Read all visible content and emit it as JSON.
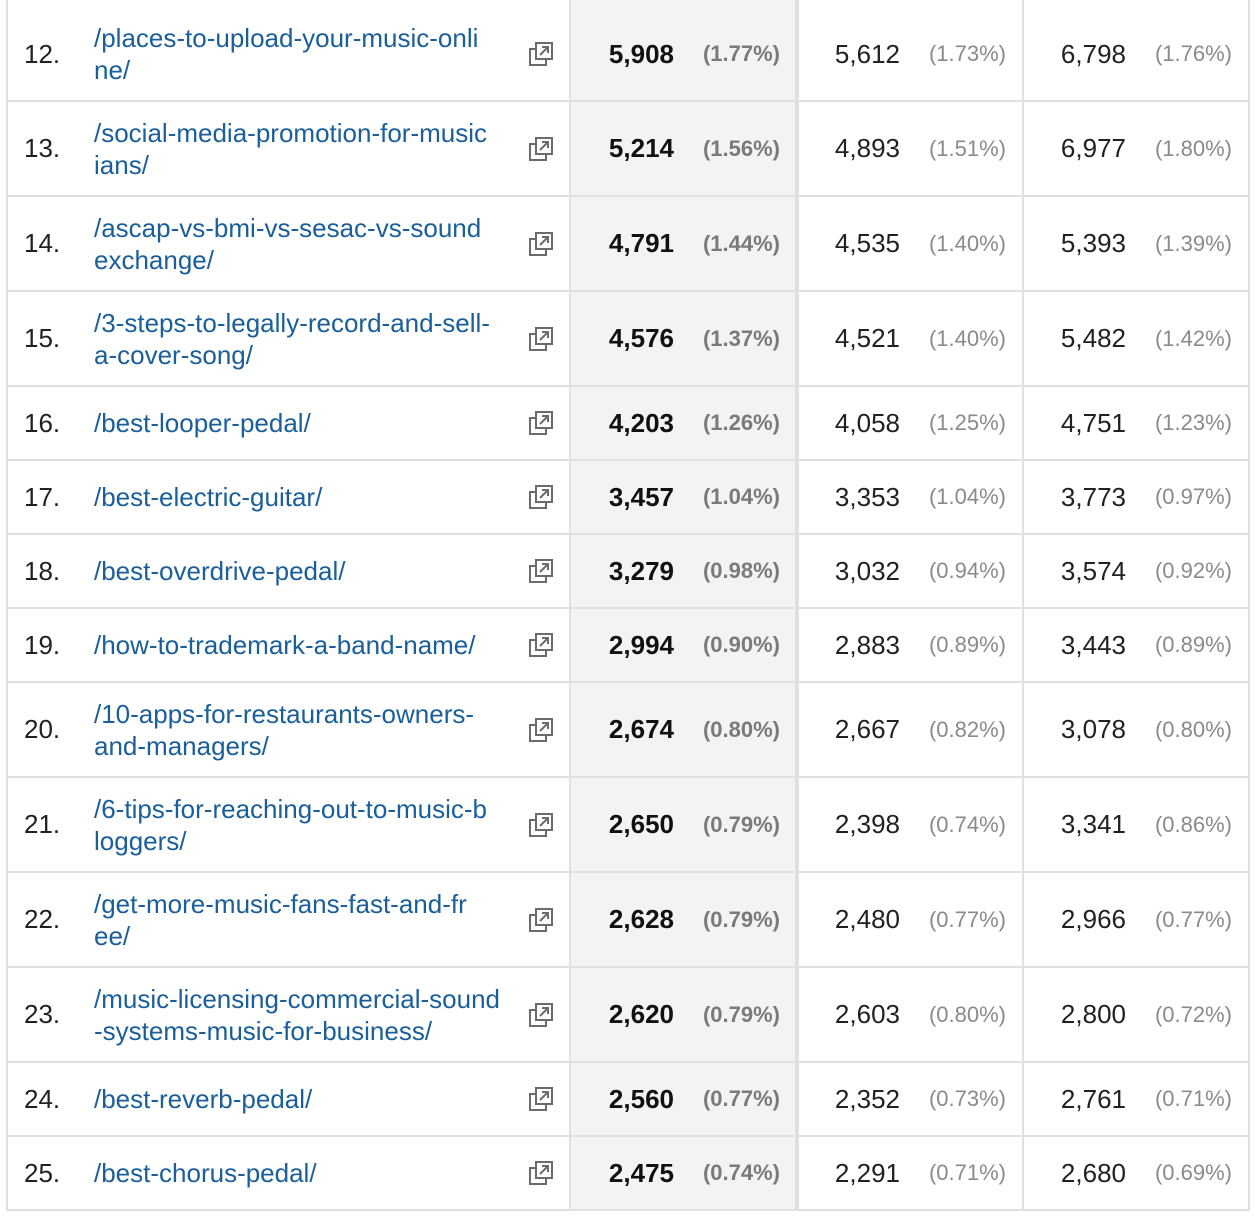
{
  "rows": [
    {
      "index": "12.",
      "page": "/places-to-upload-your-music-online/",
      "v1": "5,908",
      "p1": "(1.77%)",
      "v2": "5,612",
      "p2": "(1.73%)",
      "v3": "6,798",
      "p3": "(1.76%)"
    },
    {
      "index": "13.",
      "page": "/social-media-promotion-for-musicians/",
      "v1": "5,214",
      "p1": "(1.56%)",
      "v2": "4,893",
      "p2": "(1.51%)",
      "v3": "6,977",
      "p3": "(1.80%)"
    },
    {
      "index": "14.",
      "page": "/ascap-vs-bmi-vs-sesac-vs-soundexchange/",
      "v1": "4,791",
      "p1": "(1.44%)",
      "v2": "4,535",
      "p2": "(1.40%)",
      "v3": "5,393",
      "p3": "(1.39%)"
    },
    {
      "index": "15.",
      "page": "/3-steps-to-legally-record-and-sell-a-cover-song/",
      "v1": "4,576",
      "p1": "(1.37%)",
      "v2": "4,521",
      "p2": "(1.40%)",
      "v3": "5,482",
      "p3": "(1.42%)"
    },
    {
      "index": "16.",
      "page": "/best-looper-pedal/",
      "v1": "4,203",
      "p1": "(1.26%)",
      "v2": "4,058",
      "p2": "(1.25%)",
      "v3": "4,751",
      "p3": "(1.23%)"
    },
    {
      "index": "17.",
      "page": "/best-electric-guitar/",
      "v1": "3,457",
      "p1": "(1.04%)",
      "v2": "3,353",
      "p2": "(1.04%)",
      "v3": "3,773",
      "p3": "(0.97%)"
    },
    {
      "index": "18.",
      "page": "/best-overdrive-pedal/",
      "v1": "3,279",
      "p1": "(0.98%)",
      "v2": "3,032",
      "p2": "(0.94%)",
      "v3": "3,574",
      "p3": "(0.92%)"
    },
    {
      "index": "19.",
      "page": "/how-to-trademark-a-band-name/",
      "v1": "2,994",
      "p1": "(0.90%)",
      "v2": "2,883",
      "p2": "(0.89%)",
      "v3": "3,443",
      "p3": "(0.89%)"
    },
    {
      "index": "20.",
      "page": "/10-apps-for-restaurants-owners-and-managers/",
      "v1": "2,674",
      "p1": "(0.80%)",
      "v2": "2,667",
      "p2": "(0.82%)",
      "v3": "3,078",
      "p3": "(0.80%)"
    },
    {
      "index": "21.",
      "page": "/6-tips-for-reaching-out-to-music-bloggers/",
      "v1": "2,650",
      "p1": "(0.79%)",
      "v2": "2,398",
      "p2": "(0.74%)",
      "v3": "3,341",
      "p3": "(0.86%)"
    },
    {
      "index": "22.",
      "page": "/get-more-music-fans-fast-and-free/",
      "v1": "2,628",
      "p1": "(0.79%)",
      "v2": "2,480",
      "p2": "(0.77%)",
      "v3": "2,966",
      "p3": "(0.77%)"
    },
    {
      "index": "23.",
      "page": "/music-licensing-commercial-sound-systems-music-for-business/",
      "v1": "2,620",
      "p1": "(0.79%)",
      "v2": "2,603",
      "p2": "(0.80%)",
      "v3": "2,800",
      "p3": "(0.72%)"
    },
    {
      "index": "24.",
      "page": "/best-reverb-pedal/",
      "v1": "2,560",
      "p1": "(0.77%)",
      "v2": "2,352",
      "p2": "(0.73%)",
      "v3": "2,761",
      "p3": "(0.71%)"
    },
    {
      "index": "25.",
      "page": "/best-chorus-pedal/",
      "v1": "2,475",
      "p1": "(0.74%)",
      "v2": "2,291",
      "p2": "(0.71%)",
      "v3": "2,680",
      "p3": "(0.69%)"
    }
  ],
  "icons": {
    "open_page": "open-in-new-window-icon"
  },
  "colors": {
    "link": "#1a5e9a",
    "shade": "#f1f3f4",
    "grid": "#e0e0e0"
  }
}
